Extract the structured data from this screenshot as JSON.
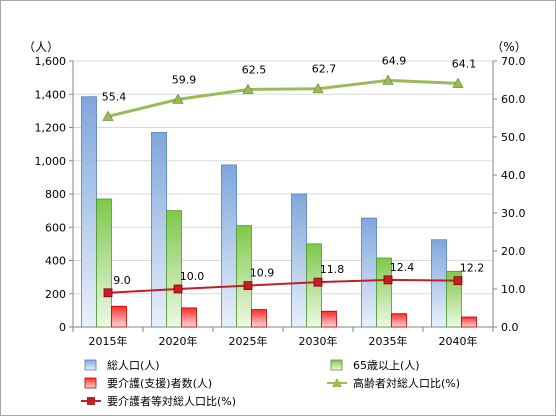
{
  "chart_data": {
    "type": "bar",
    "categories": [
      "2015年",
      "2020年",
      "2025年",
      "2030年",
      "2035年",
      "2040年"
    ],
    "left_axis": {
      "unit": "（人）",
      "min": 0,
      "max": 1600,
      "step": 200,
      "ticks": [
        "0",
        "200",
        "400",
        "600",
        "800",
        "1,000",
        "1,200",
        "1,400",
        "1,600"
      ]
    },
    "right_axis": {
      "unit": "（%）",
      "min": 0,
      "max": 70,
      "step": 10,
      "ticks": [
        "0.0",
        "10.0",
        "20.0",
        "30.0",
        "40.0",
        "50.0",
        "60.0",
        "70.0"
      ]
    },
    "series": [
      {
        "name": "総人口(人)",
        "type": "bar",
        "axis": "left",
        "color": "#8db4e2",
        "values": [
          1385,
          1170,
          975,
          800,
          655,
          525
        ]
      },
      {
        "name": "65歳以上(人)",
        "type": "bar",
        "axis": "left",
        "color": "#92d050",
        "values": [
          770,
          700,
          610,
          500,
          415,
          335
        ]
      },
      {
        "name": "要介護(支援)者数(人)",
        "type": "bar",
        "axis": "left",
        "color": "#ff3b3b",
        "values": [
          125,
          115,
          105,
          95,
          80,
          60
        ]
      },
      {
        "name": "高齢者対総人口比(%)",
        "type": "line",
        "axis": "right",
        "color": "#9bbb59",
        "marker": "triangle",
        "values": [
          55.4,
          59.9,
          62.5,
          62.7,
          64.9,
          64.1
        ],
        "labels": [
          "55.4",
          "59.9",
          "62.5",
          "62.7",
          "64.9",
          "64.1"
        ]
      },
      {
        "name": "要介護者等対総人口比(%)",
        "type": "line",
        "axis": "right",
        "color": "#c0202a",
        "marker": "square",
        "values": [
          9.0,
          10.0,
          10.9,
          11.8,
          12.4,
          12.2
        ],
        "labels": [
          "9.0",
          "10.0",
          "10.9",
          "11.8",
          "12.4",
          "12.2"
        ]
      }
    ],
    "grid": true,
    "legend_position": "bottom"
  }
}
